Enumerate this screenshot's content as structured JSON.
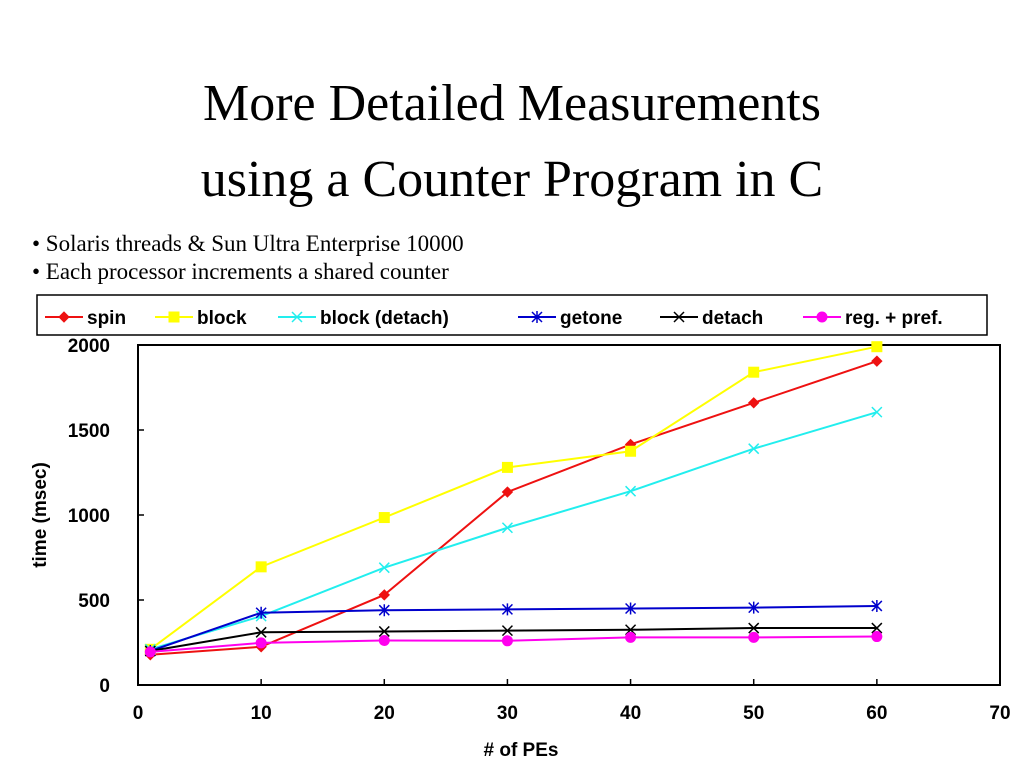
{
  "slide": {
    "title_line1": "More Detailed Measurements",
    "title_line2": "using a Counter Program in C",
    "bullets": [
      "• Solaris threads & Sun Ultra Enterprise 10000",
      "• Each processor increments a shared counter"
    ]
  },
  "chart_data": {
    "type": "line",
    "title": "",
    "xlabel": "# of PEs",
    "ylabel": "time (msec)",
    "xlim": [
      0,
      70
    ],
    "ylim": [
      0,
      2000
    ],
    "xticks": [
      0,
      10,
      20,
      30,
      40,
      50,
      60,
      70
    ],
    "yticks": [
      0,
      500,
      1000,
      1500,
      2000
    ],
    "grid": false,
    "legend_position": "top",
    "x": [
      1,
      10,
      20,
      30,
      40,
      50,
      60
    ],
    "series": [
      {
        "name": "spin",
        "color": "#ee1111",
        "marker": "diamond",
        "values": [
          178,
          225,
          530,
          1135,
          1415,
          1660,
          1905
        ]
      },
      {
        "name": "block",
        "color": "#ffff00",
        "marker": "square",
        "values": [
          210,
          695,
          985,
          1280,
          1375,
          1840,
          1990
        ]
      },
      {
        "name": "block (detach)",
        "color": "#22eeee",
        "marker": "x",
        "values": [
          210,
          405,
          690,
          925,
          1140,
          1390,
          1605
        ]
      },
      {
        "name": "getone",
        "color": "#0000cc",
        "marker": "star",
        "values": [
          200,
          425,
          440,
          445,
          450,
          455,
          465
        ]
      },
      {
        "name": "detach",
        "color": "#000000",
        "marker": "x",
        "values": [
          200,
          310,
          315,
          320,
          325,
          335,
          335
        ]
      },
      {
        "name": "reg. + pref.",
        "color": "#ff00ee",
        "marker": "circle",
        "values": [
          195,
          248,
          262,
          260,
          280,
          280,
          285
        ]
      }
    ]
  }
}
